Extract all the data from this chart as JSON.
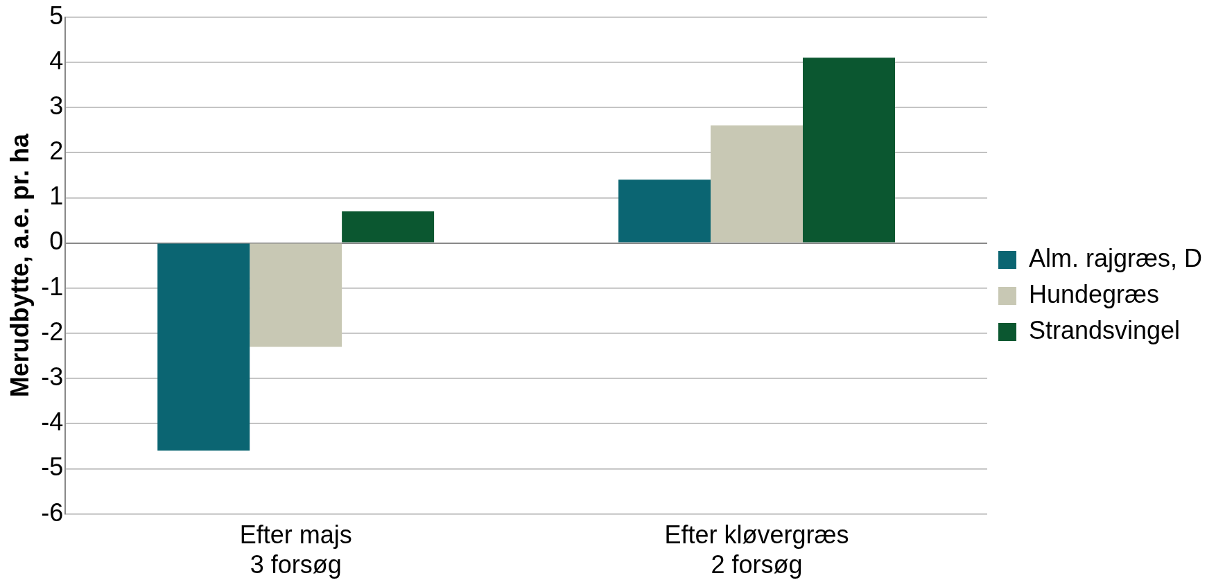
{
  "chart_data": {
    "type": "bar",
    "ylabel": "Merudbytte, a.e. pr. ha",
    "categories": [
      "Efter majs\n3 forsøg",
      "Efter kløvergræs\n2 forsøg"
    ],
    "series": [
      {
        "name": "Alm. rajgræs, D",
        "color": "#0b6572",
        "values": [
          -4.6,
          1.4
        ]
      },
      {
        "name": "Hundegræs",
        "color": "#c8c8b4",
        "values": [
          -2.3,
          2.6
        ]
      },
      {
        "name": "Strandsvingel",
        "color": "#0b5730",
        "values": [
          0.7,
          4.1
        ]
      }
    ],
    "ylim": [
      -6,
      5
    ],
    "yticks": [
      -6,
      -5,
      -4,
      -3,
      -2,
      -1,
      0,
      1,
      2,
      3,
      4,
      5
    ],
    "grid": "y",
    "legend": "right"
  }
}
